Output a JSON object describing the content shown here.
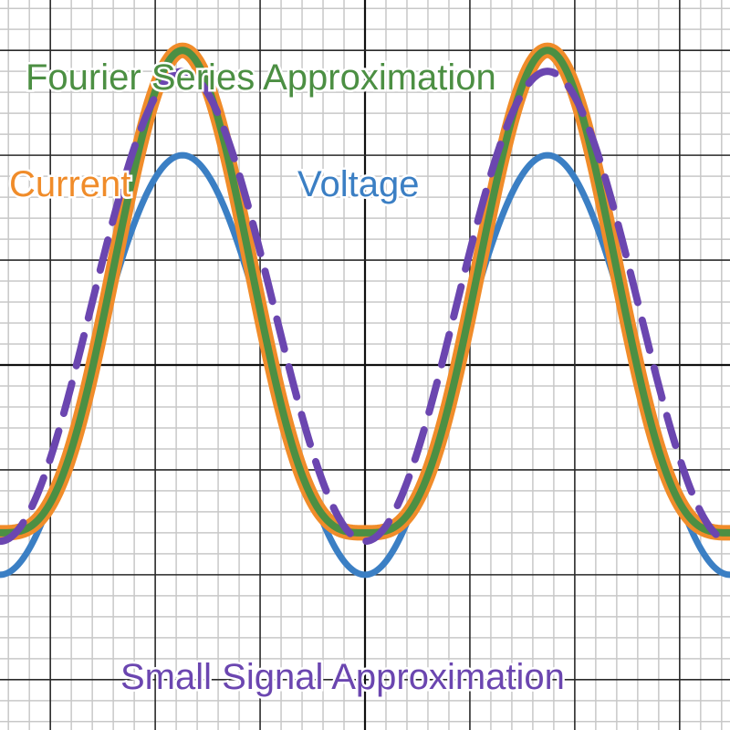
{
  "chart_data": {
    "type": "line",
    "title": "",
    "xlabel": "",
    "ylabel": "",
    "grid": true,
    "grid_minor_step": 0.5,
    "grid_major_step": 2.5,
    "xlim": [
      -8.7,
      8.7
    ],
    "ylim": [
      -8.7,
      8.7
    ],
    "series": [
      {
        "name": "Voltage",
        "color": "#3b7fc4",
        "style": "solid",
        "formula": "-5*cos(pi*x/4.35)",
        "x": [
          -8.7,
          -6.525,
          -4.35,
          -2.175,
          0,
          2.175,
          4.35,
          6.525,
          8.7
        ],
        "y": [
          -5.0,
          0.0,
          5.0,
          0.0,
          -5.0,
          0.0,
          5.0,
          0.0,
          -5.0
        ]
      },
      {
        "name": "Current",
        "color": "#f08c2a",
        "style": "solid",
        "x": [
          -8.7,
          -6.525,
          -4.35,
          -2.175,
          0,
          2.175,
          4.35,
          6.525,
          8.7
        ],
        "y": [
          -4.0,
          0.0,
          7.5,
          0.0,
          -4.0,
          0.0,
          7.5,
          0.0,
          -4.0
        ]
      },
      {
        "name": "Fourier Series Approximation",
        "color": "#4c8f43",
        "style": "solid",
        "x": [
          -8.7,
          -6.525,
          -4.35,
          -2.175,
          0,
          2.175,
          4.35,
          6.525,
          8.7
        ],
        "y": [
          -4.0,
          0.0,
          7.5,
          0.0,
          -4.0,
          0.0,
          7.5,
          0.0,
          -4.0
        ]
      },
      {
        "name": "Small Signal Approximation",
        "color": "#6b46b0",
        "style": "dashed",
        "formula": "1.4 - 5.6*cos(pi*x/4.35)",
        "x": [
          -8.7,
          -6.525,
          -4.35,
          -2.175,
          0,
          2.175,
          4.35,
          6.525,
          8.7
        ],
        "y": [
          -4.2,
          1.4,
          7.0,
          1.4,
          -4.2,
          1.4,
          7.0,
          1.4,
          -4.2
        ]
      }
    ],
    "annotations": [
      {
        "text": "Fourier Series Approximation",
        "series": "Fourier Series Approximation",
        "color": "#4c8f43"
      },
      {
        "text": "Current",
        "series": "Current",
        "color": "#f08c2a"
      },
      {
        "text": "Voltage",
        "series": "Voltage",
        "color": "#3b7fc4"
      },
      {
        "text": "Small Signal Approximation",
        "series": "Small Signal Approximation",
        "color": "#6b46b0"
      }
    ]
  }
}
